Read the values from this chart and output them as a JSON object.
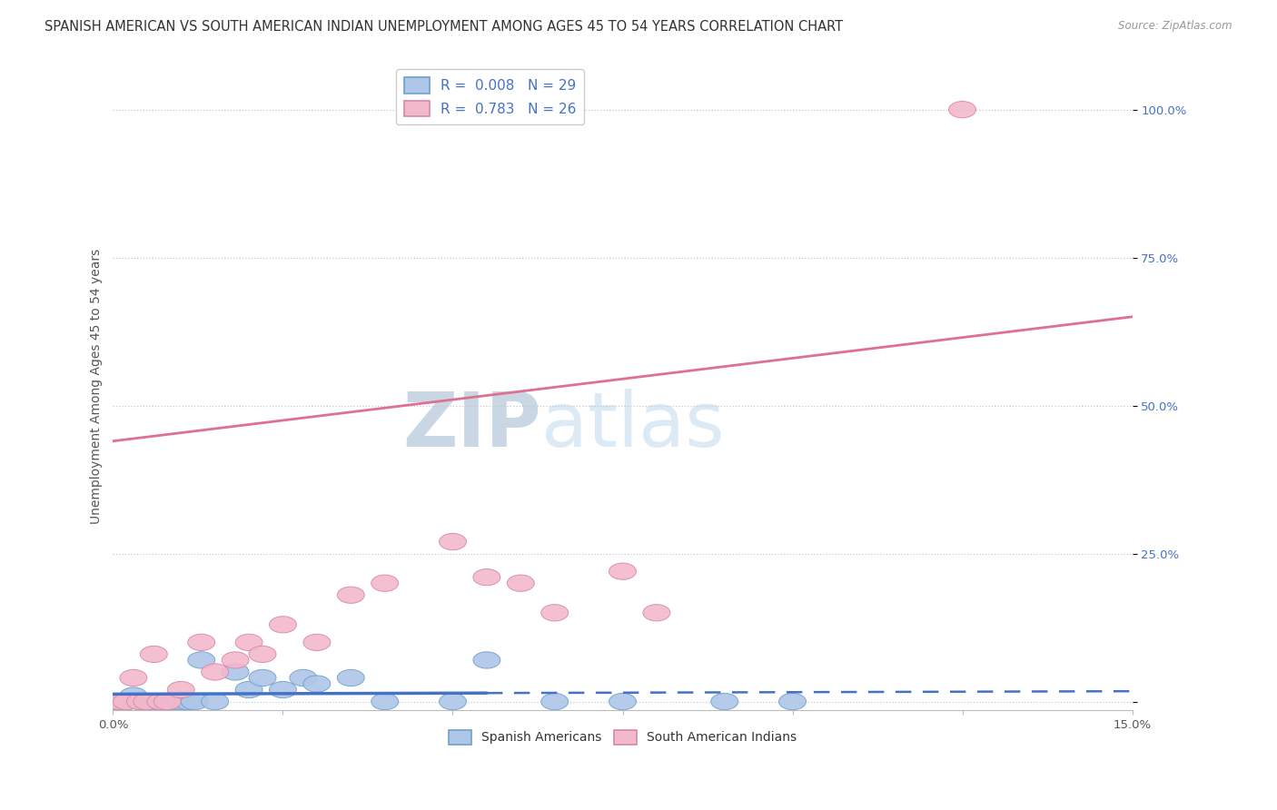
{
  "title": "SPANISH AMERICAN VS SOUTH AMERICAN INDIAN UNEMPLOYMENT AMONG AGES 45 TO 54 YEARS CORRELATION CHART",
  "source": "Source: ZipAtlas.com",
  "ylabel": "Unemployment Among Ages 45 to 54 years",
  "xlim": [
    0.0,
    0.15
  ],
  "ylim": [
    -0.015,
    1.08
  ],
  "yticks": [
    0.0,
    0.25,
    0.5,
    0.75,
    1.0
  ],
  "ytick_labels": [
    "",
    "25.0%",
    "50.0%",
    "75.0%",
    "100.0%"
  ],
  "xticks": [
    0.0,
    0.025,
    0.05,
    0.075,
    0.1,
    0.125,
    0.15
  ],
  "xtick_labels": [
    "0.0%",
    "",
    "",
    "",
    "",
    "",
    "15.0%"
  ],
  "blue_color": "#aec6e8",
  "pink_color": "#f2b8cc",
  "blue_edge_color": "#6fa0cc",
  "pink_edge_color": "#d888a8",
  "blue_line_color": "#4472C4",
  "pink_line_color": "#E07090",
  "legend_R1": "0.008",
  "legend_N1": "29",
  "legend_R2": "0.783",
  "legend_N2": "26",
  "grid_color": "#c8c8c8",
  "background_color": "#ffffff",
  "title_fontsize": 10.5,
  "axis_label_fontsize": 10,
  "tick_fontsize": 9.5,
  "legend_fontsize": 11,
  "blue_scatter_x": [
    0.0,
    0.001,
    0.002,
    0.003,
    0.004,
    0.005,
    0.006,
    0.007,
    0.008,
    0.009,
    0.01,
    0.011,
    0.012,
    0.013,
    0.015,
    0.018,
    0.02,
    0.022,
    0.025,
    0.028,
    0.03,
    0.035,
    0.04,
    0.05,
    0.055,
    0.065,
    0.075,
    0.09,
    0.1
  ],
  "blue_scatter_y": [
    0.0,
    0.0,
    0.0,
    0.01,
    0.0,
    0.0,
    0.0,
    0.0,
    0.0,
    0.0,
    0.0,
    0.0,
    0.0,
    0.07,
    0.0,
    0.05,
    0.02,
    0.04,
    0.02,
    0.04,
    0.03,
    0.04,
    0.0,
    0.0,
    0.07,
    0.0,
    0.0,
    0.0,
    0.0
  ],
  "pink_scatter_x": [
    0.0,
    0.001,
    0.002,
    0.003,
    0.004,
    0.005,
    0.006,
    0.007,
    0.008,
    0.01,
    0.013,
    0.015,
    0.018,
    0.02,
    0.022,
    0.025,
    0.03,
    0.035,
    0.04,
    0.05,
    0.055,
    0.06,
    0.065,
    0.075,
    0.08,
    0.125
  ],
  "pink_scatter_y": [
    0.0,
    0.0,
    0.0,
    0.04,
    0.0,
    0.0,
    0.08,
    0.0,
    0.0,
    0.02,
    0.1,
    0.05,
    0.07,
    0.1,
    0.08,
    0.13,
    0.1,
    0.18,
    0.2,
    0.27,
    0.21,
    0.2,
    0.15,
    0.22,
    0.15,
    1.0
  ],
  "pink_line_x0": 0.0,
  "pink_line_y0": 0.44,
  "pink_line_x1": 0.15,
  "pink_line_y1": 0.65,
  "blue_line_x_solid_end": 0.055,
  "blue_line_y_near": 0.005
}
